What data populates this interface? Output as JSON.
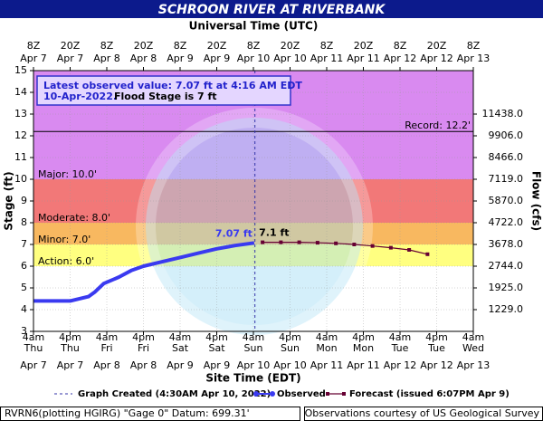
{
  "chart_data": {
    "type": "line",
    "title": "SCHROON RIVER AT RIVERBANK",
    "x2_label": "Universal Time (UTC)",
    "x_label": "Site Time (EDT)",
    "y_label": "Stage (ft)",
    "y2_label": "Flow (cfs)",
    "grid": true,
    "xlim": [
      "Apr 7 04:00",
      "Apr 13 04:00"
    ],
    "x2lim": [
      "Apr 7 08:00",
      "Apr 13 08:00"
    ],
    "ylim": [
      3,
      15
    ],
    "yticks": [
      3,
      4,
      5,
      6,
      7,
      8,
      9,
      10,
      11,
      12,
      13,
      14,
      15
    ],
    "y2ticks": [
      {
        "value": 1229,
        "label": "1229.0",
        "stage": 4
      },
      {
        "value": 1925,
        "label": "1925.0",
        "stage": 5
      },
      {
        "value": 2744,
        "label": "2744.0",
        "stage": 6
      },
      {
        "value": 3678,
        "label": "3678.0",
        "stage": 7
      },
      {
        "value": 4722,
        "label": "4722.0",
        "stage": 8
      },
      {
        "value": 5870,
        "label": "5870.0",
        "stage": 9
      },
      {
        "value": 7119,
        "label": "7119.0",
        "stage": 10
      },
      {
        "value": 8466,
        "label": "8466.0",
        "stage": 11
      },
      {
        "value": 9906,
        "label": "9906.0",
        "stage": 12
      },
      {
        "value": 11438,
        "label": "11438.0",
        "stage": 13
      }
    ],
    "xticks": [
      {
        "value": "Apr 7 04:00",
        "label": "4am",
        "day": "Thu",
        "date": "Apr 7"
      },
      {
        "value": "Apr 7 16:00",
        "label": "4pm",
        "day": "Thu",
        "date": "Apr 7"
      },
      {
        "value": "Apr 8 04:00",
        "label": "4am",
        "day": "Fri",
        "date": "Apr 8"
      },
      {
        "value": "Apr 8 16:00",
        "label": "4pm",
        "day": "Fri",
        "date": "Apr 8"
      },
      {
        "value": "Apr 9 04:00",
        "label": "4am",
        "day": "Sat",
        "date": "Apr 9"
      },
      {
        "value": "Apr 9 16:00",
        "label": "4pm",
        "day": "Sat",
        "date": "Apr 9"
      },
      {
        "value": "Apr 10 04:00",
        "label": "4am",
        "day": "Sun",
        "date": "Apr 10"
      },
      {
        "value": "Apr 10 16:00",
        "label": "4pm",
        "day": "Sun",
        "date": "Apr 10"
      },
      {
        "value": "Apr 11 04:00",
        "label": "4am",
        "day": "Mon",
        "date": "Apr 11"
      },
      {
        "value": "Apr 11 16:00",
        "label": "4pm",
        "day": "Mon",
        "date": "Apr 11"
      },
      {
        "value": "Apr 12 04:00",
        "label": "4am",
        "day": "Tue",
        "date": "Apr 12"
      },
      {
        "value": "Apr 12 16:00",
        "label": "4pm",
        "day": "Tue",
        "date": "Apr 12"
      },
      {
        "value": "Apr 13 04:00",
        "label": "4am",
        "day": "Wed",
        "date": "Apr 13"
      }
    ],
    "x2ticks": [
      {
        "value": "Apr 7 08:00",
        "label": "8Z",
        "date": "Apr 7"
      },
      {
        "value": "Apr 7 20:00",
        "label": "20Z",
        "date": "Apr 7"
      },
      {
        "value": "Apr 8 08:00",
        "label": "8Z",
        "date": "Apr 8"
      },
      {
        "value": "Apr 8 20:00",
        "label": "20Z",
        "date": "Apr 8"
      },
      {
        "value": "Apr 9 08:00",
        "label": "8Z",
        "date": "Apr 9"
      },
      {
        "value": "Apr 9 20:00",
        "label": "20Z",
        "date": "Apr 9"
      },
      {
        "value": "Apr 10 08:00",
        "label": "8Z",
        "date": "Apr 10"
      },
      {
        "value": "Apr 10 20:00",
        "label": "20Z",
        "date": "Apr 10"
      },
      {
        "value": "Apr 11 08:00",
        "label": "8Z",
        "date": "Apr 11"
      },
      {
        "value": "Apr 11 20:00",
        "label": "20Z",
        "date": "Apr 11"
      },
      {
        "value": "Apr 12 08:00",
        "label": "8Z",
        "date": "Apr 12"
      },
      {
        "value": "Apr 12 20:00",
        "label": "20Z",
        "date": "Apr 12"
      },
      {
        "value": "Apr 13 08:00",
        "label": "8Z",
        "date": "Apr 13"
      }
    ],
    "flood_categories": [
      {
        "label": "Action: 6.0'",
        "value": 6,
        "color": "#ffff80"
      },
      {
        "label": "Minor: 7.0'",
        "value": 7,
        "color": "#f8b860"
      },
      {
        "label": "Moderate: 8.0'",
        "value": 8,
        "color": "#f27878"
      },
      {
        "label": "Major: 10.0'",
        "value": 10,
        "color": "#d98af0"
      }
    ],
    "record": {
      "label": "Record: 12.2'",
      "value": 12.2
    },
    "info": {
      "latest": "Latest observed value: 7.07 ft at 4:16 AM EDT",
      "date": "10-Apr-2022.",
      "flood_stage": "Flood Stage is 7 ft"
    },
    "created": {
      "label": "Graph Created (4:30AM Apr 10, 2022)",
      "x": "Apr 10 04:30"
    },
    "series": [
      {
        "name": "Observed",
        "color": "#3a3af0",
        "x": [
          "Apr 7 04:00",
          "Apr 7 16:00",
          "Apr 7 22:00",
          "Apr 8 00:00",
          "Apr 8 03:00",
          "Apr 8 08:00",
          "Apr 8 12:00",
          "Apr 8 16:00",
          "Apr 8 22:00",
          "Apr 9 04:00",
          "Apr 9 10:00",
          "Apr 9 16:00",
          "Apr 9 22:00",
          "Apr 10 04:16"
        ],
        "values": [
          4.4,
          4.4,
          4.6,
          4.8,
          5.2,
          5.5,
          5.8,
          6.0,
          6.2,
          6.4,
          6.6,
          6.8,
          6.95,
          7.07
        ],
        "value_labels": [
          null,
          null,
          null,
          null,
          null,
          null,
          null,
          null,
          null,
          null,
          null,
          null,
          null,
          "7.07 ft"
        ]
      },
      {
        "name": "Forecast (issued 6:07PM Apr 9)",
        "color": "#660033",
        "x": [
          "Apr 10 07:00",
          "Apr 10 13:00",
          "Apr 10 19:00",
          "Apr 11 01:00",
          "Apr 11 07:00",
          "Apr 11 13:00",
          "Apr 11 19:00",
          "Apr 12 01:00",
          "Apr 12 07:00",
          "Apr 12 13:00"
        ],
        "values": [
          7.1,
          7.1,
          7.1,
          7.08,
          7.05,
          7.0,
          6.93,
          6.85,
          6.75,
          6.55
        ],
        "value_labels": [
          "7.1 ft",
          null,
          null,
          null,
          null,
          null,
          null,
          null,
          null,
          null
        ]
      }
    ],
    "footer_left": "RVRN6(plotting HGIRG) \"Gage 0\" Datum: 699.31'",
    "footer_right": "Observations courtesy of US Geological Survey"
  }
}
